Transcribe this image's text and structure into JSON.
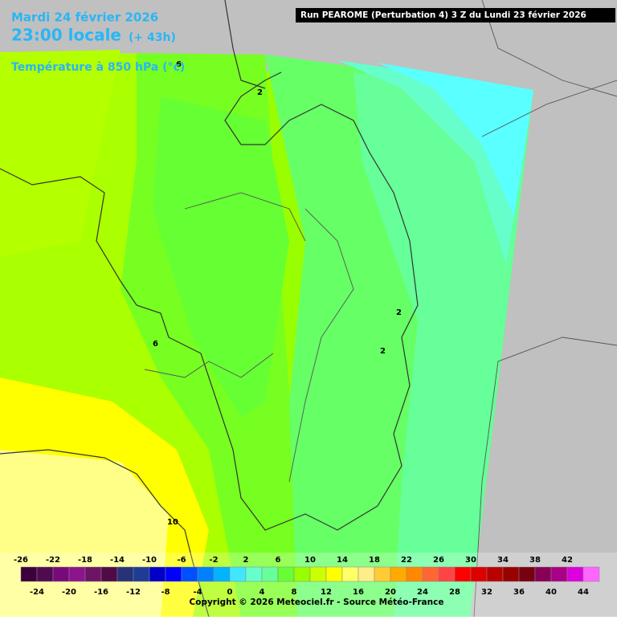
{
  "header": {
    "date": "Mardi 24 février 2026",
    "time": "23:00 locale",
    "lead": "(+ 43h)",
    "parameter": "Température à 850 hPa (°c)"
  },
  "run": "Run PEAROME (Perturbation 4) 3 Z du Lundi 23 février 2026",
  "contour_labels": [
    "2",
    "6",
    "10",
    "2",
    "2",
    "6"
  ],
  "legend": {
    "values": [
      -26,
      -24,
      -22,
      -20,
      -18,
      -16,
      -14,
      -12,
      -10,
      -8,
      -6,
      -4,
      -2,
      0,
      2,
      4,
      6,
      8,
      10,
      12,
      14,
      16,
      18,
      20,
      22,
      24,
      26,
      28,
      30,
      32,
      34,
      36,
      38,
      40,
      42,
      44
    ],
    "colors": [
      "#3c003c",
      "#500a50",
      "#780a78",
      "#8c148c",
      "#6e1464",
      "#500a46",
      "#283278",
      "#1e3c96",
      "#0000c8",
      "#0000ff",
      "#0050ff",
      "#0080ff",
      "#00b4ff",
      "#40e6ff",
      "#66ffcc",
      "#66ff99",
      "#66ff33",
      "#99ff00",
      "#ccff00",
      "#ffff00",
      "#ffff66",
      "#ffee88",
      "#ffcc33",
      "#ffaa00",
      "#ff8800",
      "#ff6633",
      "#ff4444",
      "#ff0000",
      "#dd0000",
      "#bb0000",
      "#990000",
      "#770011",
      "#880055",
      "#aa0088",
      "#dd00dd",
      "#ff66ff"
    ]
  },
  "copyright": "Copyright © 2026 Meteociel.fr - Source Météo-France"
}
